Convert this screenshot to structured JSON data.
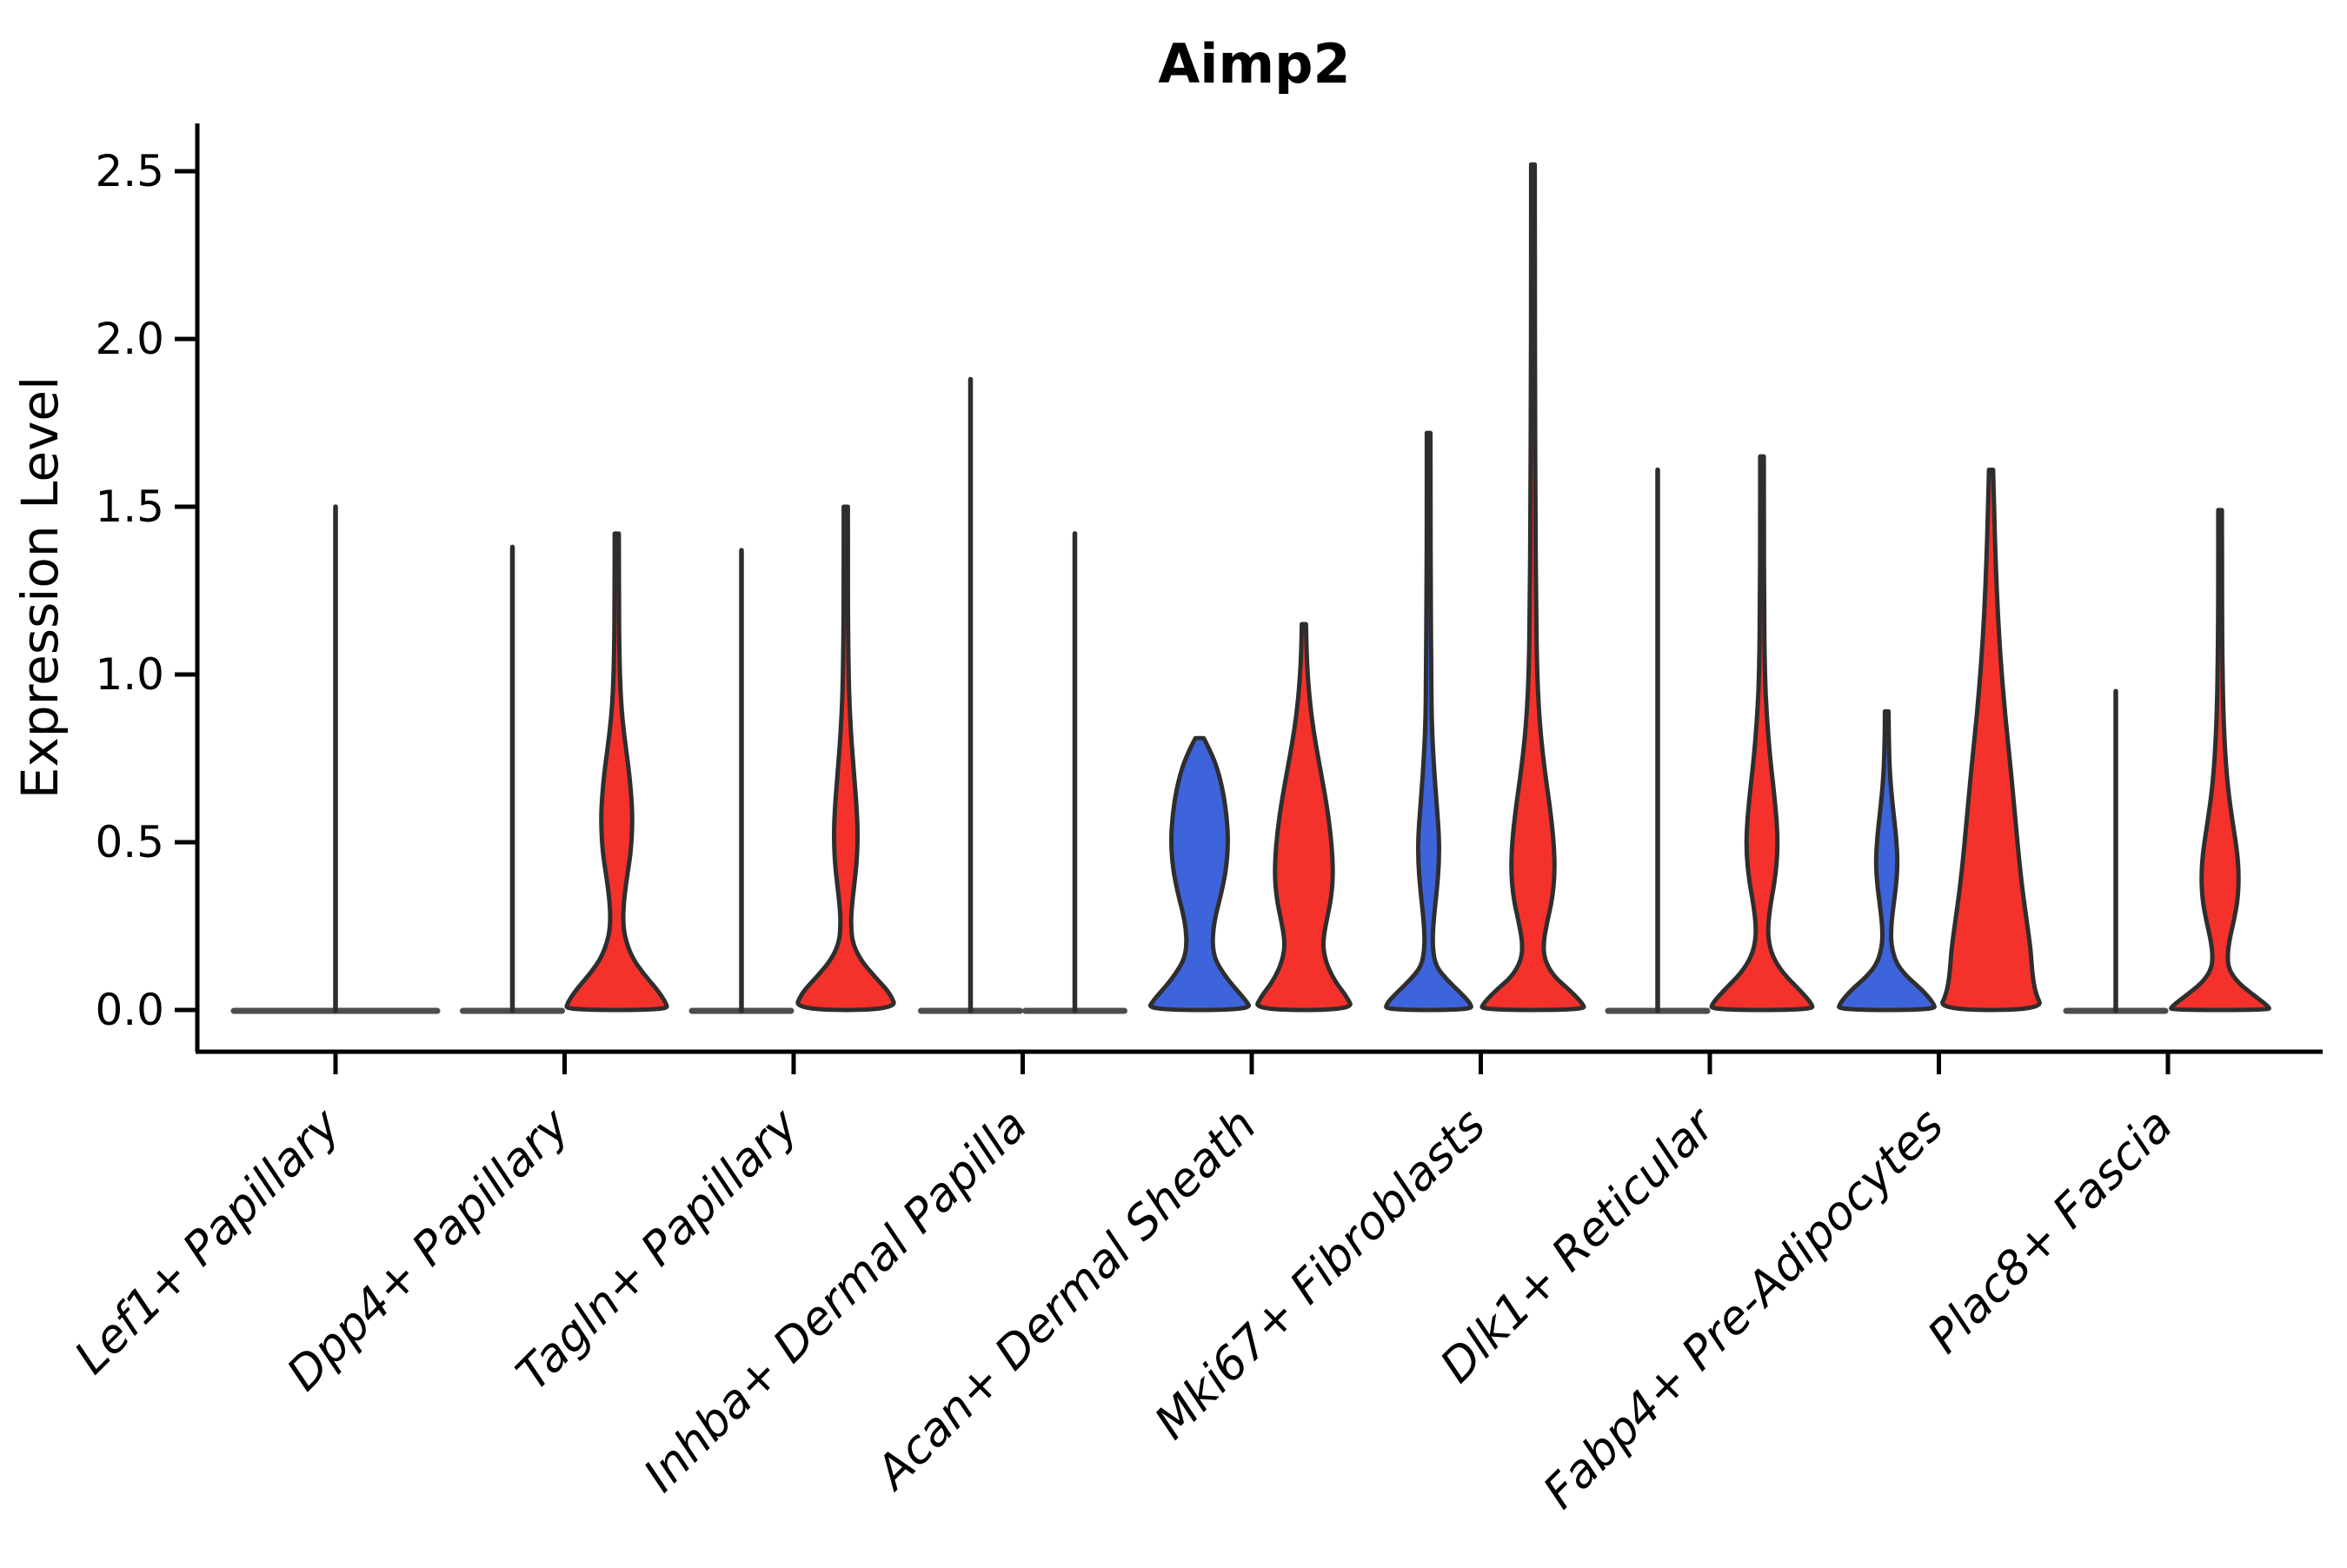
{
  "chart_data": {
    "type": "violin",
    "title": "Aimp2",
    "ylabel": "Expression Level",
    "xlabel": "",
    "yticks": [
      "0.0",
      "0.5",
      "1.0",
      "1.5",
      "2.0",
      "2.5"
    ],
    "ytick_values": [
      0.0,
      0.5,
      1.0,
      1.5,
      2.0,
      2.5
    ],
    "ylim": [
      -0.13,
      2.64
    ],
    "grid": false,
    "legend": "none",
    "split_violin": true,
    "colors": {
      "blue": "#3E64DB",
      "red": "#F5312B",
      "outline": "#2E2E2E",
      "baseline": "#4D4D4D",
      "none": "none"
    },
    "categories": [
      "Lef1+ Papillary",
      "Dpp4+ Papillary",
      "Tagln+ Papillary",
      "Inhba+ Dermal Papilla",
      "Acan+ Dermal Sheath",
      "Mki67+ Fibroblasts",
      "Dlk1+ Reticular",
      "Fabp4+ Pre-Adipocytes",
      "Plac8+ Fascia"
    ],
    "series": [
      {
        "name": "group-blue",
        "max_expression": [
          null,
          1.38,
          1.37,
          1.88,
          0.81,
          1.72,
          1.61,
          0.89,
          0.95
        ]
      },
      {
        "name": "group-red",
        "max_expression": [
          1.5,
          1.42,
          1.5,
          1.42,
          1.15,
          2.52,
          1.65,
          1.61,
          1.49
        ]
      }
    ],
    "clusters": [
      {
        "label": "Lef1+ Papillary",
        "violins": [
          {
            "side": "center",
            "color": "none",
            "kind": "line",
            "max": 1.5,
            "base_half": 120
          }
        ]
      },
      {
        "label": "Dpp4+ Papillary",
        "violins": [
          {
            "side": "left",
            "color": "blue",
            "kind": "line",
            "max": 1.38,
            "base_half": 60
          },
          {
            "side": "right",
            "color": "red",
            "kind": "shape",
            "max": 1.42,
            "profile": [
              [
                1.42,
                0.04
              ],
              [
                1.25,
                0.04
              ],
              [
                1.05,
                0.05
              ],
              [
                0.92,
                0.08
              ],
              [
                0.82,
                0.14
              ],
              [
                0.72,
                0.23
              ],
              [
                0.62,
                0.29
              ],
              [
                0.55,
                0.3
              ],
              [
                0.47,
                0.27
              ],
              [
                0.4,
                0.2
              ],
              [
                0.33,
                0.14
              ],
              [
                0.27,
                0.12
              ],
              [
                0.22,
                0.15
              ],
              [
                0.16,
                0.28
              ],
              [
                0.11,
                0.5
              ],
              [
                0.06,
                0.78
              ],
              [
                0.02,
                0.95
              ],
              [
                0,
                0.97
              ]
            ]
          }
        ]
      },
      {
        "label": "Tagln+ Papillary",
        "violins": [
          {
            "side": "left",
            "color": "blue",
            "kind": "line",
            "max": 1.37,
            "base_half": 60
          },
          {
            "side": "right",
            "color": "red",
            "kind": "shape",
            "max": 1.5,
            "profile": [
              [
                1.5,
                0.04
              ],
              [
                1.3,
                0.04
              ],
              [
                1.1,
                0.045
              ],
              [
                0.95,
                0.06
              ],
              [
                0.82,
                0.1
              ],
              [
                0.7,
                0.16
              ],
              [
                0.6,
                0.21
              ],
              [
                0.52,
                0.23
              ],
              [
                0.44,
                0.21
              ],
              [
                0.37,
                0.16
              ],
              [
                0.3,
                0.11
              ],
              [
                0.25,
                0.1
              ],
              [
                0.2,
                0.13
              ],
              [
                0.15,
                0.28
              ],
              [
                0.1,
                0.55
              ],
              [
                0.05,
                0.85
              ],
              [
                0,
                0.98
              ]
            ]
          }
        ]
      },
      {
        "label": "Inhba+ Dermal Papilla",
        "violins": [
          {
            "side": "left",
            "color": "blue",
            "kind": "line",
            "max": 1.88,
            "base_half": 60
          },
          {
            "side": "right",
            "color": "red",
            "kind": "line",
            "max": 1.42,
            "base_half": 60
          }
        ]
      },
      {
        "label": "Acan+ Dermal Sheath",
        "violins": [
          {
            "side": "left",
            "color": "blue",
            "kind": "shape",
            "max": 0.81,
            "profile": [
              [
                0.81,
                0.08
              ],
              [
                0.78,
                0.18
              ],
              [
                0.73,
                0.32
              ],
              [
                0.66,
                0.44
              ],
              [
                0.58,
                0.52
              ],
              [
                0.5,
                0.55
              ],
              [
                0.42,
                0.51
              ],
              [
                0.35,
                0.42
              ],
              [
                0.29,
                0.32
              ],
              [
                0.24,
                0.26
              ],
              [
                0.19,
                0.25
              ],
              [
                0.15,
                0.3
              ],
              [
                0.11,
                0.45
              ],
              [
                0.07,
                0.65
              ],
              [
                0.03,
                0.88
              ],
              [
                0,
                1.0
              ]
            ]
          },
          {
            "side": "right",
            "color": "red",
            "kind": "shape",
            "max": 1.15,
            "profile": [
              [
                1.15,
                0.04
              ],
              [
                1.07,
                0.05
              ],
              [
                0.98,
                0.08
              ],
              [
                0.88,
                0.14
              ],
              [
                0.78,
                0.24
              ],
              [
                0.68,
                0.36
              ],
              [
                0.58,
                0.47
              ],
              [
                0.48,
                0.54
              ],
              [
                0.4,
                0.56
              ],
              [
                0.33,
                0.52
              ],
              [
                0.27,
                0.44
              ],
              [
                0.22,
                0.38
              ],
              [
                0.18,
                0.37
              ],
              [
                0.13,
                0.45
              ],
              [
                0.08,
                0.62
              ],
              [
                0.04,
                0.82
              ],
              [
                0,
                0.95
              ]
            ]
          }
        ]
      },
      {
        "label": "Mki67+ Fibroblasts",
        "violins": [
          {
            "side": "left",
            "color": "blue",
            "kind": "shape",
            "max": 1.72,
            "profile": [
              [
                1.72,
                0.035
              ],
              [
                1.5,
                0.035
              ],
              [
                1.25,
                0.04
              ],
              [
                1.0,
                0.05
              ],
              [
                0.85,
                0.06
              ],
              [
                0.73,
                0.1
              ],
              [
                0.62,
                0.15
              ],
              [
                0.52,
                0.2
              ],
              [
                0.44,
                0.2
              ],
              [
                0.36,
                0.16
              ],
              [
                0.29,
                0.11
              ],
              [
                0.23,
                0.08
              ],
              [
                0.18,
                0.08
              ],
              [
                0.13,
                0.14
              ],
              [
                0.09,
                0.35
              ],
              [
                0.05,
                0.62
              ],
              [
                0.02,
                0.8
              ],
              [
                0,
                0.83
              ]
            ]
          },
          {
            "side": "right",
            "color": "red",
            "kind": "shape",
            "max": 2.52,
            "profile": [
              [
                2.52,
                0.035
              ],
              [
                2.2,
                0.035
              ],
              [
                1.85,
                0.04
              ],
              [
                1.5,
                0.045
              ],
              [
                1.2,
                0.06
              ],
              [
                1.0,
                0.08
              ],
              [
                0.85,
                0.13
              ],
              [
                0.72,
                0.22
              ],
              [
                0.6,
                0.33
              ],
              [
                0.5,
                0.4
              ],
              [
                0.41,
                0.42
              ],
              [
                0.33,
                0.37
              ],
              [
                0.26,
                0.27
              ],
              [
                0.2,
                0.2
              ],
              [
                0.15,
                0.22
              ],
              [
                0.1,
                0.4
              ],
              [
                0.06,
                0.7
              ],
              [
                0.02,
                0.95
              ],
              [
                0,
                1.0
              ]
            ]
          }
        ]
      },
      {
        "label": "Dlk1+ Reticular",
        "violins": [
          {
            "side": "left",
            "color": "blue",
            "kind": "line",
            "max": 1.61,
            "base_half": 60
          },
          {
            "side": "right",
            "color": "red",
            "kind": "shape",
            "max": 1.65,
            "profile": [
              [
                1.65,
                0.035
              ],
              [
                1.45,
                0.035
              ],
              [
                1.2,
                0.04
              ],
              [
                1.0,
                0.055
              ],
              [
                0.88,
                0.09
              ],
              [
                0.76,
                0.15
              ],
              [
                0.65,
                0.23
              ],
              [
                0.55,
                0.29
              ],
              [
                0.47,
                0.3
              ],
              [
                0.39,
                0.25
              ],
              [
                0.32,
                0.17
              ],
              [
                0.26,
                0.12
              ],
              [
                0.21,
                0.12
              ],
              [
                0.16,
                0.2
              ],
              [
                0.11,
                0.4
              ],
              [
                0.06,
                0.72
              ],
              [
                0.02,
                0.95
              ],
              [
                0,
                0.98
              ]
            ]
          }
        ]
      },
      {
        "label": "Fabp4+ Pre-Adipocytes",
        "violins": [
          {
            "side": "left",
            "color": "blue",
            "kind": "shape",
            "max": 0.89,
            "profile": [
              [
                0.89,
                0.035
              ],
              [
                0.8,
                0.04
              ],
              [
                0.7,
                0.06
              ],
              [
                0.6,
                0.12
              ],
              [
                0.52,
                0.18
              ],
              [
                0.44,
                0.21
              ],
              [
                0.37,
                0.18
              ],
              [
                0.3,
                0.12
              ],
              [
                0.24,
                0.08
              ],
              [
                0.19,
                0.09
              ],
              [
                0.14,
                0.18
              ],
              [
                0.1,
                0.38
              ],
              [
                0.06,
                0.68
              ],
              [
                0.02,
                0.9
              ],
              [
                0,
                0.93
              ]
            ]
          },
          {
            "side": "right",
            "color": "red",
            "kind": "shape",
            "max": 1.61,
            "profile": [
              [
                1.61,
                0.04
              ],
              [
                1.48,
                0.06
              ],
              [
                1.33,
                0.09
              ],
              [
                1.18,
                0.13
              ],
              [
                1.03,
                0.19
              ],
              [
                0.88,
                0.27
              ],
              [
                0.73,
                0.37
              ],
              [
                0.58,
                0.46
              ],
              [
                0.46,
                0.53
              ],
              [
                0.36,
                0.6
              ],
              [
                0.27,
                0.68
              ],
              [
                0.18,
                0.76
              ],
              [
                0.11,
                0.79
              ],
              [
                0.05,
                0.85
              ],
              [
                0,
                1.0
              ]
            ]
          }
        ]
      },
      {
        "label": "Plac8+ Fascia",
        "violins": [
          {
            "side": "left",
            "color": "blue",
            "kind": "line",
            "max": 0.95,
            "base_half": 60
          },
          {
            "side": "right",
            "color": "red",
            "kind": "shape",
            "max": 1.49,
            "profile": [
              [
                1.49,
                0.035
              ],
              [
                1.3,
                0.035
              ],
              [
                1.1,
                0.04
              ],
              [
                0.92,
                0.055
              ],
              [
                0.78,
                0.09
              ],
              [
                0.66,
                0.15
              ],
              [
                0.56,
                0.24
              ],
              [
                0.47,
                0.33
              ],
              [
                0.4,
                0.36
              ],
              [
                0.33,
                0.34
              ],
              [
                0.27,
                0.27
              ],
              [
                0.21,
                0.18
              ],
              [
                0.16,
                0.14
              ],
              [
                0.12,
                0.17
              ],
              [
                0.08,
                0.35
              ],
              [
                0.04,
                0.68
              ],
              [
                0.01,
                0.93
              ],
              [
                0,
                0.95
              ]
            ]
          }
        ]
      }
    ]
  }
}
